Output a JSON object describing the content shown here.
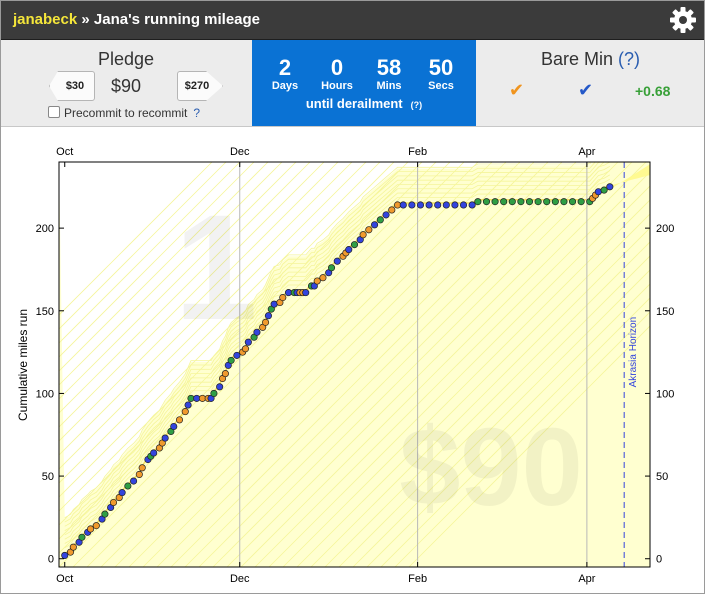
{
  "header": {
    "username": "janabeck",
    "separator": " » ",
    "goal_title": "Jana's running mileage",
    "settings_icon": "gear-icon"
  },
  "pledge": {
    "label": "Pledge",
    "amount": "$90",
    "decrease_label": "$30",
    "increase_label": "$270",
    "precommit_label": "Precommit to recommit",
    "precommit_checked": false,
    "help": "?"
  },
  "countdown": {
    "days": "2",
    "days_label": "Days",
    "hours": "0",
    "hours_label": "Hours",
    "mins": "58",
    "mins_label": "Mins",
    "secs": "50",
    "secs_label": "Secs",
    "until": "until derailment",
    "help": "(?)"
  },
  "bare_min": {
    "label": "Bare Min",
    "help": "(?)",
    "value": "+0.68",
    "check_colors": [
      "#f0941e",
      "#2458c8"
    ],
    "value_color": "#38a038"
  },
  "chart_data": {
    "type": "scatter",
    "xlabel": "",
    "ylabel": "Cumulative miles run",
    "x_tick_labels": [
      "Oct",
      "Dec",
      "Feb",
      "Apr"
    ],
    "y_tick_labels": [
      "0",
      "50",
      "100",
      "150",
      "200"
    ],
    "ylim": [
      -5,
      240
    ],
    "xlim_days": [
      -2,
      204
    ],
    "watermark_days": "1",
    "watermark_pledge": "$90",
    "horizon_label": "Akrasia Horizon",
    "horizon_day": 195,
    "x_tick_days": [
      0,
      61,
      123,
      182
    ],
    "grid_x": true,
    "series": [
      {
        "values": [
          [
            0,
            2
          ],
          [
            2,
            4
          ],
          [
            3,
            7
          ],
          [
            5,
            10
          ],
          [
            6,
            13
          ],
          [
            8,
            16
          ],
          [
            9,
            18
          ],
          [
            11,
            20
          ],
          [
            13,
            24
          ],
          [
            14,
            27
          ],
          [
            16,
            31
          ],
          [
            17,
            34
          ],
          [
            19,
            37
          ],
          [
            20,
            40
          ],
          [
            22,
            44
          ],
          [
            24,
            47
          ],
          [
            26,
            51
          ],
          [
            27,
            55
          ],
          [
            29,
            60
          ],
          [
            30,
            62
          ],
          [
            31,
            64
          ],
          [
            33,
            67
          ],
          [
            34,
            70
          ],
          [
            35,
            73
          ],
          [
            37,
            77
          ],
          [
            38,
            80
          ],
          [
            40,
            84
          ],
          [
            42,
            89
          ],
          [
            43,
            93
          ],
          [
            44,
            97
          ],
          [
            46,
            97
          ],
          [
            48,
            97
          ],
          [
            50,
            97
          ],
          [
            51,
            97
          ],
          [
            52,
            100
          ],
          [
            54,
            104
          ],
          [
            55,
            109
          ],
          [
            56,
            112
          ],
          [
            57,
            117
          ],
          [
            58,
            120
          ],
          [
            60,
            123
          ],
          [
            62,
            125
          ],
          [
            63,
            127
          ],
          [
            64,
            131
          ],
          [
            66,
            134
          ],
          [
            67,
            137
          ],
          [
            69,
            140
          ],
          [
            70,
            143
          ],
          [
            71,
            147
          ],
          [
            72,
            151
          ],
          [
            73,
            154
          ],
          [
            75,
            155
          ],
          [
            76,
            158
          ],
          [
            78,
            161
          ],
          [
            80,
            161
          ],
          [
            81,
            161
          ],
          [
            82,
            161
          ],
          [
            83,
            161
          ],
          [
            84,
            161
          ],
          [
            86,
            165
          ],
          [
            87,
            165
          ],
          [
            88,
            168
          ],
          [
            90,
            170
          ],
          [
            92,
            173
          ],
          [
            93,
            176
          ],
          [
            95,
            180
          ],
          [
            97,
            183
          ],
          [
            98,
            185
          ],
          [
            99,
            187
          ],
          [
            101,
            190
          ],
          [
            103,
            193
          ],
          [
            104,
            196
          ],
          [
            106,
            199
          ],
          [
            108,
            202
          ],
          [
            110,
            205
          ],
          [
            112,
            208
          ],
          [
            114,
            211
          ],
          [
            116,
            214
          ],
          [
            118,
            214
          ],
          [
            121,
            214
          ],
          [
            124,
            214
          ],
          [
            127,
            214
          ],
          [
            130,
            214
          ],
          [
            133,
            214
          ],
          [
            136,
            214
          ],
          [
            139,
            214
          ],
          [
            142,
            214
          ],
          [
            144,
            216
          ],
          [
            147,
            216
          ],
          [
            150,
            216
          ],
          [
            153,
            216
          ],
          [
            156,
            216
          ],
          [
            159,
            216
          ],
          [
            162,
            216
          ],
          [
            165,
            216
          ],
          [
            168,
            216
          ],
          [
            171,
            216
          ],
          [
            174,
            216
          ],
          [
            177,
            216
          ],
          [
            180,
            216
          ],
          [
            183,
            216
          ],
          [
            184,
            218
          ],
          [
            185,
            220
          ],
          [
            186,
            222
          ],
          [
            188,
            223
          ],
          [
            190,
            225
          ]
        ]
      }
    ]
  },
  "colors": {
    "dot_blue": "#3344dd",
    "dot_orange": "#f09a2e",
    "dot_green": "#2f9e44",
    "road_fill": "#ffffd0",
    "road_line": "#f5f59a",
    "horizon": "#3344dd"
  }
}
